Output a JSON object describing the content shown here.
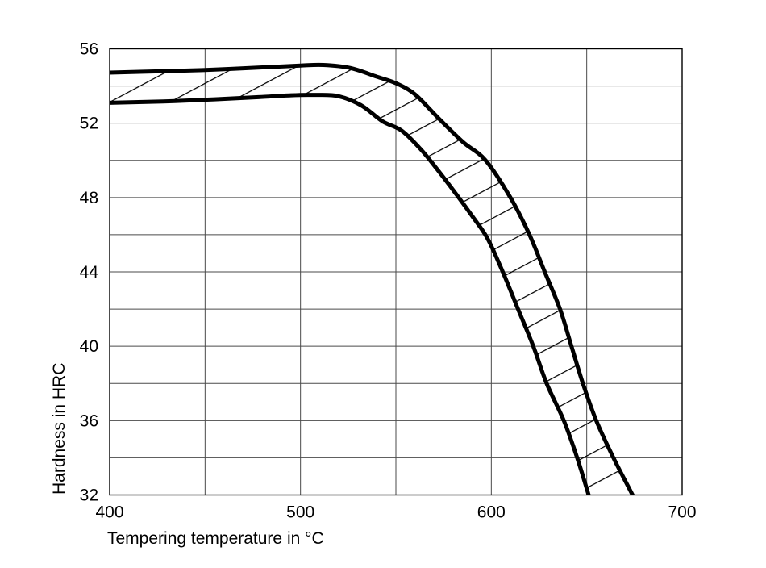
{
  "figure": {
    "background": "#ffffff"
  },
  "chart_data": {
    "type": "area",
    "title": "",
    "xlabel": "Tempering temperature in °C",
    "ylabel": "Hardness in HRC",
    "xlim": [
      400,
      700
    ],
    "ylim": [
      32,
      56
    ],
    "x_grid_step": 50,
    "y_grid_step": 2,
    "x_major_ticks": [
      400,
      500,
      600,
      700
    ],
    "y_major_ticks": [
      56,
      52,
      48,
      44,
      40,
      36,
      32
    ],
    "grid": "on",
    "legend": "none",
    "band": {
      "name": "hardness-scatter-band",
      "description": "hatched tolerance band between upper and lower hardness curves",
      "hatch_angle_deg": -28,
      "hatch_spacing_px": 35,
      "series": [
        {
          "name": "upper",
          "points": [
            [
              400,
              54.72
            ],
            [
              430,
              54.8
            ],
            [
              455,
              54.88
            ],
            [
              480,
              55.0
            ],
            [
              500,
              55.1
            ],
            [
              512,
              55.13
            ],
            [
              526,
              54.97
            ],
            [
              540,
              54.5
            ],
            [
              550,
              54.15
            ],
            [
              560,
              53.55
            ],
            [
              572,
              52.3
            ],
            [
              585,
              51.0
            ],
            [
              597,
              50.0
            ],
            [
              610,
              48.0
            ],
            [
              620,
              46.0
            ],
            [
              628,
              44.0
            ],
            [
              636,
              42.0
            ],
            [
              642,
              40.0
            ],
            [
              648,
              38.0
            ],
            [
              655,
              36.0
            ],
            [
              664,
              34.0
            ],
            [
              674,
              32.0
            ],
            [
              677,
              31.3
            ]
          ]
        },
        {
          "name": "lower",
          "points": [
            [
              400,
              53.1
            ],
            [
              428,
              53.17
            ],
            [
              455,
              53.28
            ],
            [
              478,
              53.4
            ],
            [
              495,
              53.5
            ],
            [
              508,
              53.52
            ],
            [
              520,
              53.45
            ],
            [
              532,
              52.95
            ],
            [
              543,
              52.1
            ],
            [
              553,
              51.6
            ],
            [
              563,
              50.6
            ],
            [
              571,
              49.6
            ],
            [
              580,
              48.4
            ],
            [
              590,
              47.0
            ],
            [
              598,
              45.8
            ],
            [
              606,
              44.0
            ],
            [
              614,
              42.0
            ],
            [
              622,
              40.0
            ],
            [
              629,
              38.0
            ],
            [
              638,
              36.0
            ],
            [
              645,
              34.0
            ],
            [
              651,
              32.0
            ],
            [
              653,
              31.3
            ]
          ]
        }
      ]
    },
    "colors": {
      "curve": "#000000",
      "hatch": "#000000",
      "grid": "#4a4a4a",
      "frame": "#000000",
      "text": "#000000"
    }
  }
}
